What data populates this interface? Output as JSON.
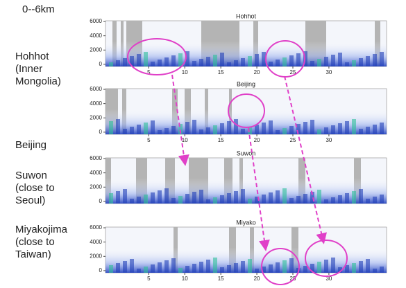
{
  "heading": "0--6km",
  "site_labels": [
    [
      "Hohhot",
      "(Inner",
      "Mongolia)"
    ],
    [
      "Beijing"
    ],
    [
      "Suwon",
      "(close to",
      "Seoul)"
    ],
    [
      "Miyakojima",
      "(close to",
      "Taiwan)"
    ]
  ],
  "chart_data": [
    {
      "type": "image",
      "title": "Hohhot",
      "xlim": [
        -1,
        38
      ],
      "xticks": [
        5,
        10,
        15,
        20,
        25,
        30
      ],
      "ylim": [
        -300,
        6100
      ],
      "yticks": [
        0,
        2000,
        4000,
        6000
      ]
    },
    {
      "type": "image",
      "title": "Beijing",
      "xlim": [
        -1,
        38
      ],
      "xticks": [
        5,
        10,
        15,
        20,
        25,
        30
      ],
      "ylim": [
        -300,
        6100
      ],
      "yticks": [
        0,
        2000,
        4000,
        6000
      ]
    },
    {
      "type": "image",
      "title": "Suwon",
      "xlim": [
        -1,
        38
      ],
      "ylim": [
        -300,
        6100
      ],
      "yticks": [
        0,
        2000,
        4000,
        6000
      ]
    },
    {
      "type": "image",
      "title": "Miyako",
      "xlim": [
        -1,
        38
      ],
      "xticks": [
        5,
        10,
        15,
        20,
        25,
        30
      ],
      "ylim": [
        -300,
        6100
      ],
      "yticks": [
        0,
        2000,
        4000,
        6000
      ]
    }
  ]
}
